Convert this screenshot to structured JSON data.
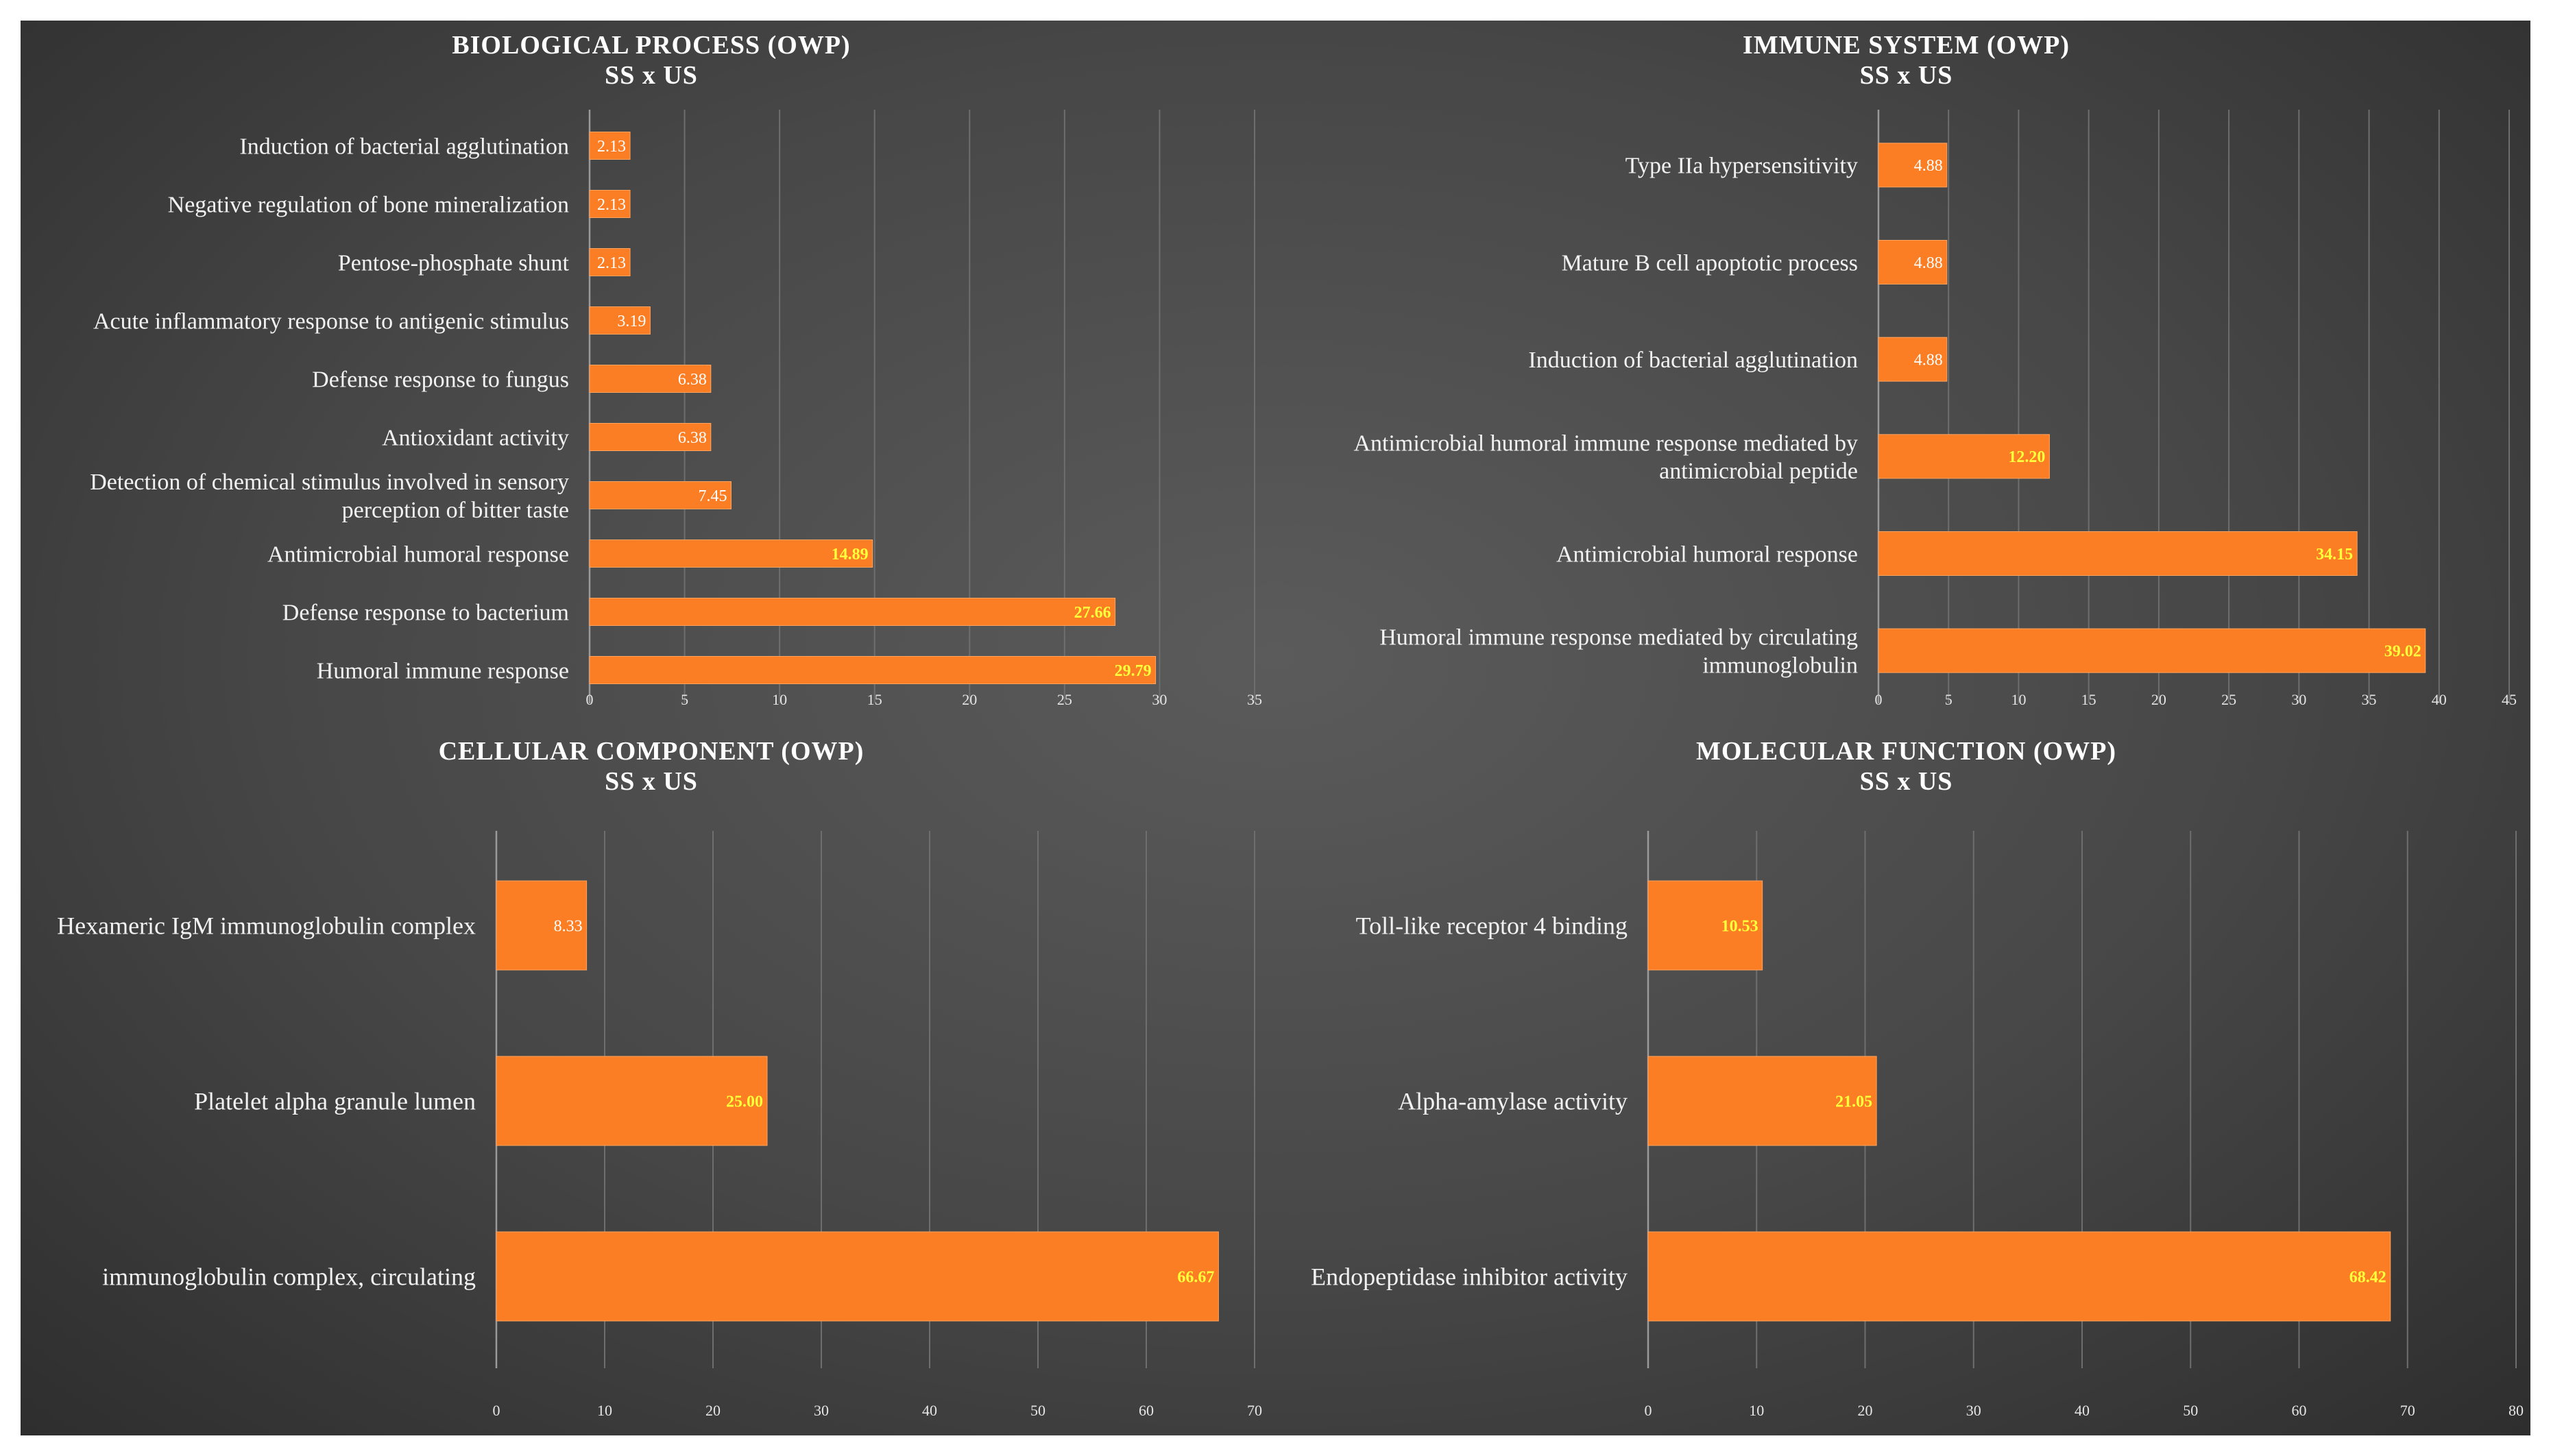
{
  "chart_data": [
    {
      "type": "bar",
      "orientation": "horizontal",
      "title": "BIOLOGICAL PROCESS (OWP)",
      "subtitle": "SS x US",
      "categories": [
        "Induction of bacterial agglutination",
        "Negative regulation of bone mineralization",
        "Pentose-phosphate shunt",
        "Acute inflammatory response to antigenic stimulus",
        "Defense response to fungus",
        "Antioxidant activity",
        "Detection of chemical stimulus involved in sensory perception of bitter taste",
        "Antimicrobial humoral response",
        "Defense response to bacterium",
        "Humoral immune response"
      ],
      "values": [
        2.13,
        2.13,
        2.13,
        3.19,
        6.38,
        6.38,
        7.45,
        14.89,
        27.66,
        29.79
      ],
      "value_labels": [
        "2.13",
        "2.13",
        "2.13",
        "3.19",
        "6.38",
        "6.38",
        "7.45",
        "14.89",
        "27.66",
        "29.79"
      ],
      "xlim": [
        0,
        35
      ],
      "ticks": [
        0,
        5,
        10,
        15,
        20,
        25,
        30,
        35
      ],
      "xlabel": "",
      "ylabel": "",
      "grid": true,
      "legend": "none"
    },
    {
      "type": "bar",
      "orientation": "horizontal",
      "title": "IMMUNE SYSTEM (OWP)",
      "subtitle": "SS x US",
      "categories": [
        "Type IIa hypersensitivity",
        "Mature B cell apoptotic process",
        "Induction of bacterial agglutination",
        "Antimicrobial humoral immune response mediated by antimicrobial peptide",
        "Antimicrobial humoral response",
        "Humoral immune response mediated by circulating immunoglobulin"
      ],
      "values": [
        4.88,
        4.88,
        4.88,
        12.2,
        34.15,
        39.02
      ],
      "value_labels": [
        "4.88",
        "4.88",
        "4.88",
        "12.20",
        "34.15",
        "39.02"
      ],
      "xlim": [
        0,
        45
      ],
      "ticks": [
        0,
        5,
        10,
        15,
        20,
        25,
        30,
        35,
        40,
        45
      ],
      "xlabel": "",
      "ylabel": "",
      "grid": true,
      "legend": "none"
    },
    {
      "type": "bar",
      "orientation": "horizontal",
      "title": "CELLULAR COMPONENT (OWP)",
      "subtitle": "SS x US",
      "categories": [
        "Hexameric IgM immunoglobulin complex",
        "Platelet alpha granule lumen",
        "immunoglobulin complex, circulating"
      ],
      "values": [
        8.33,
        25.0,
        66.67
      ],
      "value_labels": [
        "8.33",
        "25.00",
        "66.67"
      ],
      "xlim": [
        0,
        70
      ],
      "ticks": [
        0,
        10,
        20,
        30,
        40,
        50,
        60,
        70
      ],
      "xlabel": "",
      "ylabel": "",
      "grid": true,
      "legend": "none"
    },
    {
      "type": "bar",
      "orientation": "horizontal",
      "title": "MOLECULAR FUNCTION (OWP)",
      "subtitle": "SS x US",
      "categories": [
        "Toll-like receptor 4 binding",
        "Alpha-amylase activity",
        "Endopeptidase inhibitor activity"
      ],
      "values": [
        10.53,
        21.05,
        68.42
      ],
      "value_labels": [
        "10.53",
        "21.05",
        "68.42"
      ],
      "xlim": [
        0,
        80
      ],
      "ticks": [
        0,
        10,
        20,
        30,
        40,
        50,
        60,
        70,
        80
      ],
      "xlabel": "",
      "ylabel": "",
      "grid": true,
      "legend": "none"
    }
  ],
  "colors": {
    "bar": "#fb7d24",
    "bar_edge": "#ffa45e",
    "label_small": "#ffffff",
    "label_large": "#ffff3c",
    "grid": "#6e6e6e",
    "axis": "#9a9a9a"
  }
}
